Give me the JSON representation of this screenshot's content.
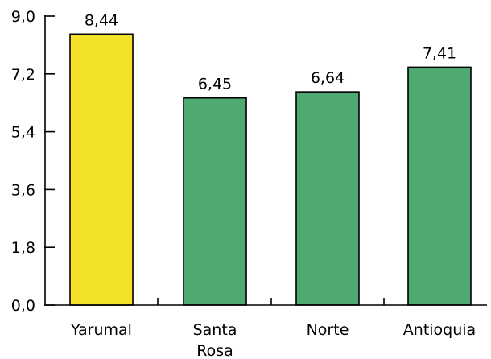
{
  "chart_data": {
    "type": "bar",
    "title": "",
    "xlabel": "",
    "ylabel": "",
    "categories": [
      [
        "Yarumal"
      ],
      [
        "Santa",
        "Rosa"
      ],
      [
        "Norte"
      ],
      [
        "Antioquia"
      ]
    ],
    "values": [
      8.44,
      6.45,
      6.64,
      7.41
    ],
    "value_labels": [
      "8,44",
      "6,45",
      "6,64",
      "7,41"
    ],
    "bar_colors": [
      "#f4e22a",
      "#4faa72",
      "#4faa72",
      "#4faa72"
    ],
    "ylim": [
      0,
      9.0
    ],
    "yticks": [
      0,
      1.8,
      3.6,
      5.4,
      7.2,
      9.0
    ],
    "ytick_labels": [
      "0,0",
      "1,8",
      "3,6",
      "5,4",
      "7,2",
      "9,0"
    ],
    "grid": false,
    "legend": false
  }
}
